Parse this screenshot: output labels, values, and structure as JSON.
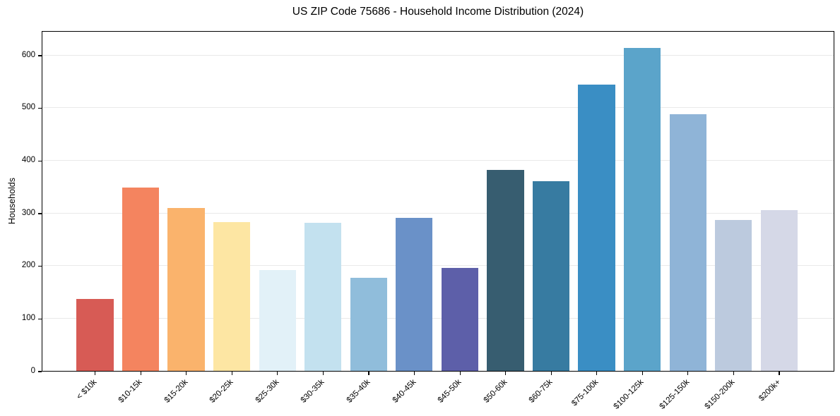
{
  "figure": {
    "background_color": "#ffffff",
    "axis_color": "#000000",
    "grid_color": "#e9e9e9"
  },
  "chart_data": {
    "type": "bar",
    "title": "US ZIP Code 75686 - Household Income Distribution (2024)",
    "xlabel": "",
    "ylabel": "Households",
    "categories": [
      "< $10k",
      "$10-15k",
      "$15-20k",
      "$20-25k",
      "$25-30k",
      "$30-35k",
      "$35-40k",
      "$40-45k",
      "$45-50k",
      "$50-60k",
      "$60-75k",
      "$75-100k",
      "$100-125k",
      "$125-150k",
      "$150-200k",
      "$200k+"
    ],
    "values": [
      136,
      348,
      310,
      283,
      191,
      281,
      177,
      291,
      195,
      382,
      361,
      544,
      613,
      488,
      286,
      305
    ],
    "bar_colors": [
      "#d75b55",
      "#f4845f",
      "#fab36c",
      "#fde6a3",
      "#e2f1f8",
      "#c3e1ef",
      "#90bddb",
      "#6a91c8",
      "#5d5fa9",
      "#375d70",
      "#377ba1",
      "#3a8ec4",
      "#5ba4ca",
      "#8fb4d7",
      "#bccade",
      "#d5d8e7"
    ],
    "yticks": [
      0,
      100,
      200,
      300,
      400,
      500,
      600
    ],
    "ylim": [
      0,
      647
    ],
    "grid": "horizontal",
    "legend": "none",
    "x_tick_rotation_deg": 45
  }
}
